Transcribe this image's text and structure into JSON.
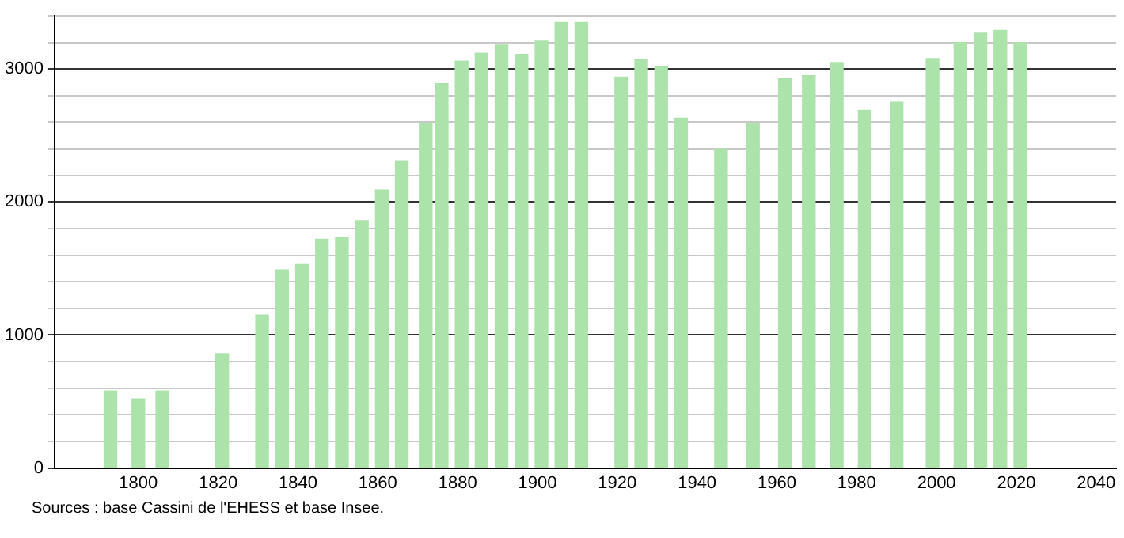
{
  "chart_data": {
    "type": "bar",
    "x": [
      1793,
      1800,
      1806,
      1821,
      1831,
      1836,
      1841,
      1846,
      1851,
      1856,
      1861,
      1866,
      1872,
      1876,
      1881,
      1886,
      1891,
      1896,
      1901,
      1906,
      1911,
      1921,
      1926,
      1931,
      1936,
      1946,
      1954,
      1962,
      1968,
      1975,
      1982,
      1990,
      1999,
      2006,
      2011,
      2016,
      2021
    ],
    "values": [
      580,
      520,
      580,
      860,
      1150,
      1490,
      1530,
      1720,
      1730,
      1860,
      2090,
      2310,
      2590,
      2890,
      3060,
      3120,
      3180,
      3110,
      3210,
      3350,
      3350,
      2940,
      3070,
      3020,
      2630,
      2400,
      2590,
      2930,
      2950,
      3050,
      2690,
      2750,
      3080,
      3200,
      3270,
      3290,
      3200
    ],
    "color": "#abe3ab",
    "xlim": [
      1779,
      2045
    ],
    "xticks": [
      1800,
      1820,
      1840,
      1860,
      1880,
      1900,
      1920,
      1940,
      1960,
      1980,
      2000,
      2020,
      2040
    ],
    "ylim": [
      0,
      3400
    ],
    "yticks": [
      0,
      {
        "value": 200,
        "label": null
      },
      {
        "value": 400,
        "label": null
      },
      {
        "value": 600,
        "label": null
      },
      {
        "value": 800,
        "label": null
      },
      1000,
      {
        "value": 1200,
        "label": null
      },
      {
        "value": 1400,
        "label": null
      },
      {
        "value": 1600,
        "label": null
      },
      {
        "value": 1800,
        "label": null
      },
      2000,
      {
        "value": 2200,
        "label": null
      },
      {
        "value": 2400,
        "label": null
      },
      {
        "value": 2600,
        "label": null
      },
      {
        "value": 2800,
        "label": null
      },
      3000,
      {
        "value": 3200,
        "label": null
      },
      {
        "value": 3400,
        "label": null
      }
    ],
    "grid": "y",
    "annotations": [
      "Sources : base Cassini de l'EHESS et base Insee."
    ]
  }
}
